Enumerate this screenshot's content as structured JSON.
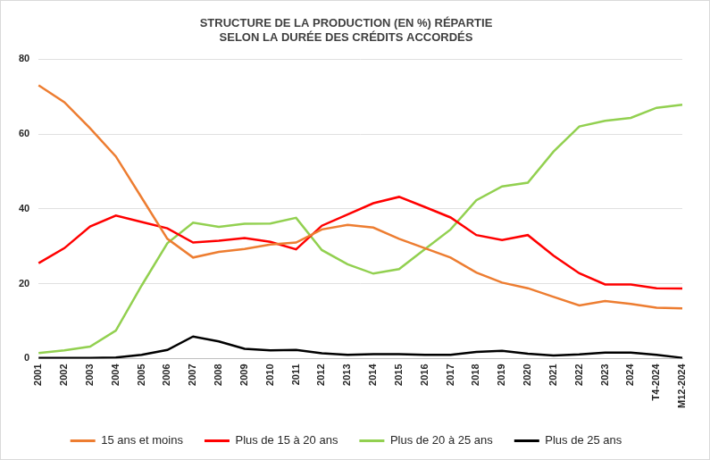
{
  "chart_data": {
    "type": "line",
    "title": [
      "STRUCTURE DE LA PRODUCTION (EN %) RÉPARTIE",
      "SELON LA DURÉE DES CRÉDITS ACCORDÉS"
    ],
    "categories": [
      "2001",
      "2002",
      "2003",
      "2004",
      "2005",
      "2006",
      "2007",
      "2008",
      "2009",
      "2010",
      "2011",
      "2012",
      "2013",
      "2014",
      "2015",
      "2016",
      "2017",
      "2018",
      "2019",
      "2020",
      "2021",
      "2022",
      "2023",
      "2024",
      "T4-2024",
      "M12-2024"
    ],
    "series": [
      {
        "name": "15 ans et moins",
        "color": "#ed7d31",
        "values": [
          73,
          68.5,
          61.5,
          54,
          43,
          32,
          27,
          28.5,
          29.3,
          30.5,
          31,
          34.5,
          35.7,
          35,
          32,
          29.5,
          27,
          23,
          20.3,
          18.8,
          16.5,
          14.2,
          15.4,
          14.6,
          13.6,
          13.4
        ]
      },
      {
        "name": "Plus de 15 à 20 ans",
        "color": "#ff0000",
        "values": [
          25.5,
          29.5,
          35.3,
          38.2,
          36.5,
          34.8,
          31,
          31.5,
          32.2,
          31.2,
          29.2,
          35.5,
          38.5,
          41.5,
          43.2,
          40.5,
          37.7,
          33,
          31.7,
          33,
          27.5,
          22.8,
          19.8,
          19.8,
          18.8,
          18.7
        ]
      },
      {
        "name": "Plus de 20 à 25 ans",
        "color": "#92d050",
        "values": [
          1.5,
          2.2,
          3.2,
          7.5,
          19.5,
          30.8,
          36.3,
          35.2,
          36,
          36.1,
          37.6,
          29,
          25.2,
          22.7,
          23.9,
          29.2,
          34.5,
          42.3,
          46,
          47,
          55.3,
          62,
          63.5,
          64.3,
          67,
          67.8
        ]
      },
      {
        "name": "Plus de 25 ans",
        "color": "#000000",
        "values": [
          0.2,
          0.2,
          0.2,
          0.3,
          1.0,
          2.3,
          5.9,
          4.6,
          2.6,
          2.2,
          2.3,
          1.4,
          1.0,
          1.2,
          1.2,
          1.0,
          1.0,
          1.8,
          2.1,
          1.3,
          0.8,
          1.1,
          1.6,
          1.6,
          1.0,
          0.2
        ]
      }
    ],
    "ylim": [
      0,
      80
    ],
    "yticks": [
      0,
      20,
      40,
      60,
      80
    ],
    "grid": true,
    "legend": "bottom",
    "marker": "none"
  }
}
